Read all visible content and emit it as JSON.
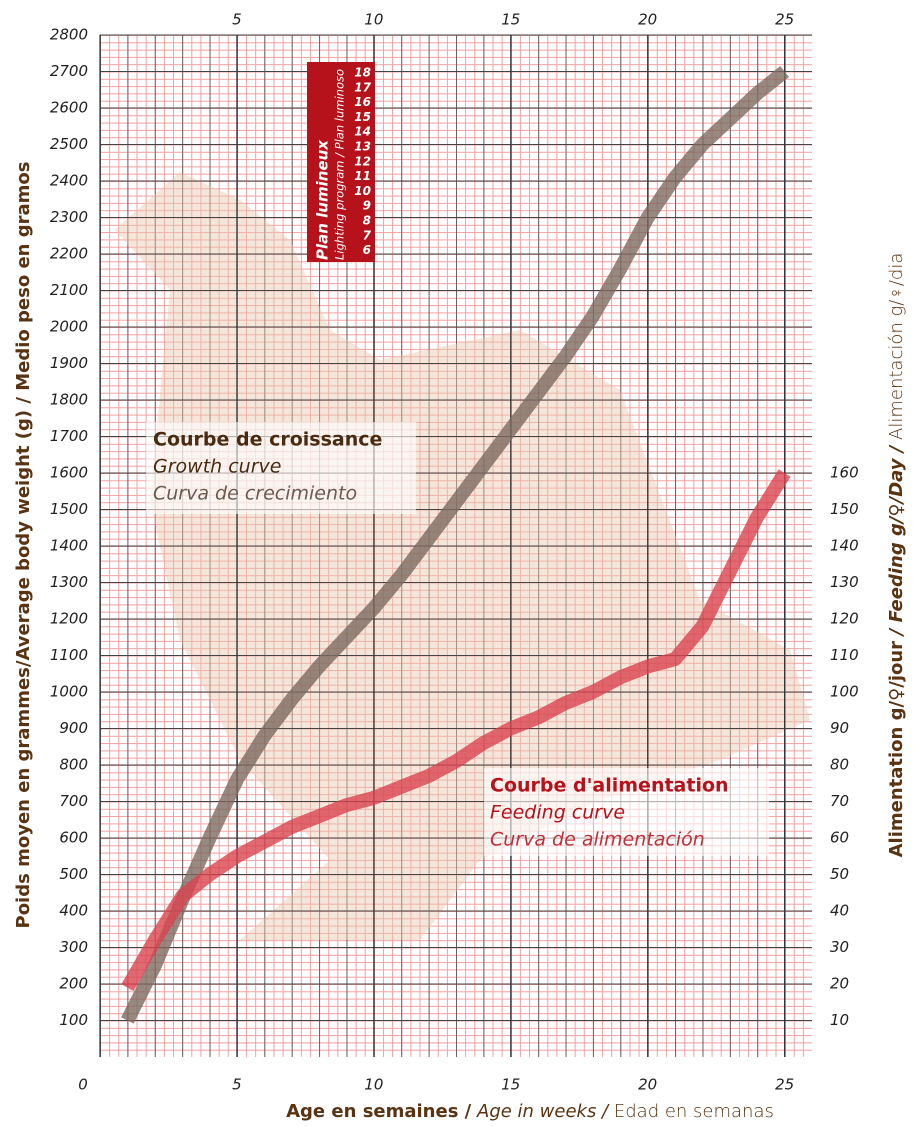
{
  "chart_data": {
    "type": "line",
    "x_label_parts": [
      "Age en semaines /",
      "Age in weeks /",
      "Edad en semanas"
    ],
    "y_label": "Poids moyen en grammes/Average body weight (g) / Medio peso en gramos",
    "y2_label_parts": [
      "Alimentation g/♀/jour",
      "/ Feeding g/♀/Day /",
      "Alimentación g/♀/dia"
    ],
    "x": [
      1,
      2,
      3,
      4,
      5,
      6,
      7,
      8,
      9,
      10,
      11,
      12,
      13,
      14,
      15,
      16,
      17,
      18,
      19,
      20,
      21,
      22,
      23,
      24,
      25
    ],
    "xlim": [
      0,
      26
    ],
    "xticks": [
      0,
      5,
      10,
      15,
      20,
      25
    ],
    "ylim": [
      0,
      2800
    ],
    "yticks": [
      100,
      200,
      300,
      400,
      500,
      600,
      700,
      800,
      900,
      1000,
      1100,
      1200,
      1300,
      1400,
      1500,
      1600,
      1700,
      1800,
      1900,
      2000,
      2100,
      2200,
      2300,
      2400,
      2500,
      2600,
      2700,
      2800
    ],
    "y2lim": [
      0,
      280
    ],
    "y2ticks": [
      10,
      20,
      30,
      40,
      50,
      60,
      70,
      80,
      90,
      100,
      110,
      120,
      130,
      140,
      150,
      160
    ],
    "grid": true,
    "series": [
      {
        "name": "Courbe de croissance",
        "name_en": "Growth curve",
        "name_es": "Curva de crecimiento",
        "color": "#7d6a60",
        "values": [
          100,
          250,
          430,
          600,
          760,
          880,
          980,
          1070,
          1150,
          1230,
          1320,
          1420,
          1520,
          1620,
          1720,
          1820,
          1920,
          2030,
          2160,
          2300,
          2410,
          2500,
          2570,
          2640,
          2700
        ]
      },
      {
        "name": "Courbe d'alimentation",
        "name_en": "Feeding curve",
        "name_es": "Curva de alimentación",
        "color": "#d9434f",
        "axis": "y2",
        "values": [
          19,
          32,
          44,
          50,
          55,
          59,
          63,
          66,
          69,
          71,
          74,
          77,
          81,
          86,
          90,
          93,
          97,
          100,
          104,
          107,
          109,
          118,
          133,
          148,
          160
        ]
      }
    ],
    "light_program": {
      "title": "Plan lumineux",
      "subtitle": "Lighting program / Plan luminoso",
      "hours": [
        18,
        17,
        16,
        15,
        14,
        13,
        12,
        11,
        10,
        9,
        8,
        7,
        6
      ]
    }
  }
}
